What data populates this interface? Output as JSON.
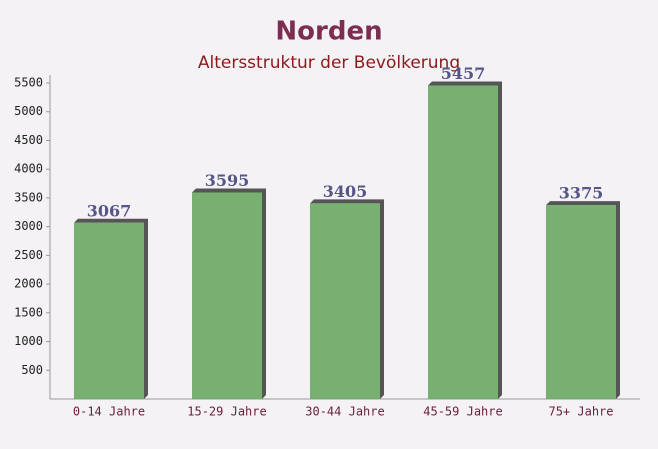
{
  "chart_data": {
    "type": "bar",
    "title": "Norden",
    "subtitle": "Altersstruktur der Bevölkerung",
    "categories": [
      "0-14 Jahre",
      "15-29 Jahre",
      "30-44 Jahre",
      "45-59 Jahre",
      "75+ Jahre"
    ],
    "values": [
      3067,
      3595,
      3405,
      5457,
      3375
    ],
    "color": "#6aa864",
    "ylim": [
      0,
      5500
    ],
    "yticks": [
      500,
      1000,
      1500,
      2000,
      2500,
      3000,
      3500,
      4000,
      4500,
      5000,
      5500
    ]
  }
}
